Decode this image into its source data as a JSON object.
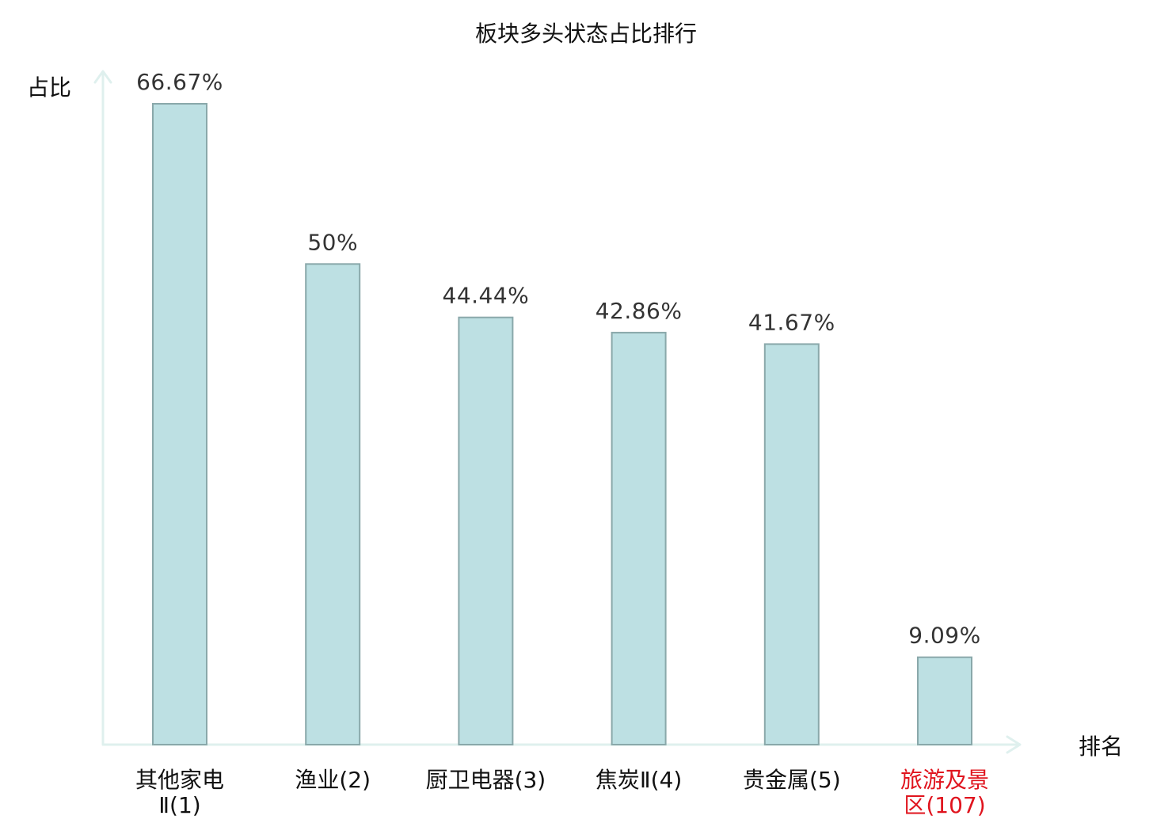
{
  "chart_data": {
    "type": "bar",
    "title": "板块多头状态占比排行",
    "ylabel": "占比",
    "xlabel": "排名",
    "ylim": [
      0,
      70
    ],
    "grid": false,
    "categories": [
      {
        "line1": "其他家电",
        "line2": "Ⅱ(1)",
        "highlight": false
      },
      {
        "line1": "渔业(2)",
        "line2": "",
        "highlight": false
      },
      {
        "line1": "厨卫电器(3)",
        "line2": "",
        "highlight": false
      },
      {
        "line1": "焦炭Ⅱ(4)",
        "line2": "",
        "highlight": false
      },
      {
        "line1": "贵金属(5)",
        "line2": "",
        "highlight": false
      },
      {
        "line1": "旅游及景",
        "line2": "区(107)",
        "highlight": true
      }
    ],
    "values": [
      66.67,
      50,
      44.44,
      42.86,
      41.67,
      9.09
    ],
    "value_labels": [
      "66.67%",
      "50%",
      "44.44%",
      "42.86%",
      "41.67%",
      "9.09%"
    ],
    "colors": {
      "bar_fill": "#bde0e3",
      "bar_stroke": "#8aa8aa",
      "axis": "#dff0ee",
      "highlight_text": "#e0141e",
      "normal_text": "#111111",
      "value_text": "#333333"
    }
  }
}
